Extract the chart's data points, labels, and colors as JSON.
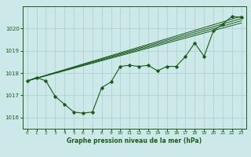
{
  "title": "Graphe pression niveau de la mer (hPa)",
  "bg_color": "#cce8e8",
  "grid_color": "#aacece",
  "line_color": "#1a5c1a",
  "xlim": [
    -0.5,
    23.5
  ],
  "ylim": [
    1015.5,
    1021.0
  ],
  "yticks": [
    1016,
    1017,
    1018,
    1019,
    1020
  ],
  "xtick_labels": [
    "0",
    "1",
    "2",
    "3",
    "4",
    "5",
    "6",
    "7",
    "8",
    "9",
    "10",
    "11",
    "12",
    "13",
    "14",
    "15",
    "16",
    "17",
    "18",
    "19",
    "20",
    "21",
    "22",
    "23"
  ],
  "main_data": [
    [
      0,
      1017.65
    ],
    [
      1,
      1017.8
    ],
    [
      2,
      1017.65
    ],
    [
      3,
      1016.95
    ],
    [
      4,
      1016.6
    ],
    [
      5,
      1016.25
    ],
    [
      6,
      1016.2
    ],
    [
      7,
      1016.25
    ],
    [
      8,
      1017.35
    ],
    [
      9,
      1017.6
    ],
    [
      10,
      1018.3
    ],
    [
      11,
      1018.35
    ],
    [
      12,
      1018.3
    ],
    [
      13,
      1018.35
    ],
    [
      14,
      1018.1
    ],
    [
      15,
      1018.3
    ],
    [
      16,
      1018.3
    ],
    [
      17,
      1018.75
    ],
    [
      18,
      1019.35
    ],
    [
      19,
      1018.75
    ],
    [
      20,
      1019.9
    ],
    [
      21,
      1020.2
    ],
    [
      22,
      1020.55
    ],
    [
      23,
      1020.5
    ]
  ],
  "trend_lines": [
    [
      [
        0,
        1017.65
      ],
      [
        23,
        1020.55
      ]
    ],
    [
      [
        0,
        1017.65
      ],
      [
        23,
        1020.45
      ]
    ],
    [
      [
        0,
        1017.65
      ],
      [
        23,
        1020.35
      ]
    ],
    [
      [
        0,
        1017.65
      ],
      [
        23,
        1020.25
      ]
    ]
  ]
}
